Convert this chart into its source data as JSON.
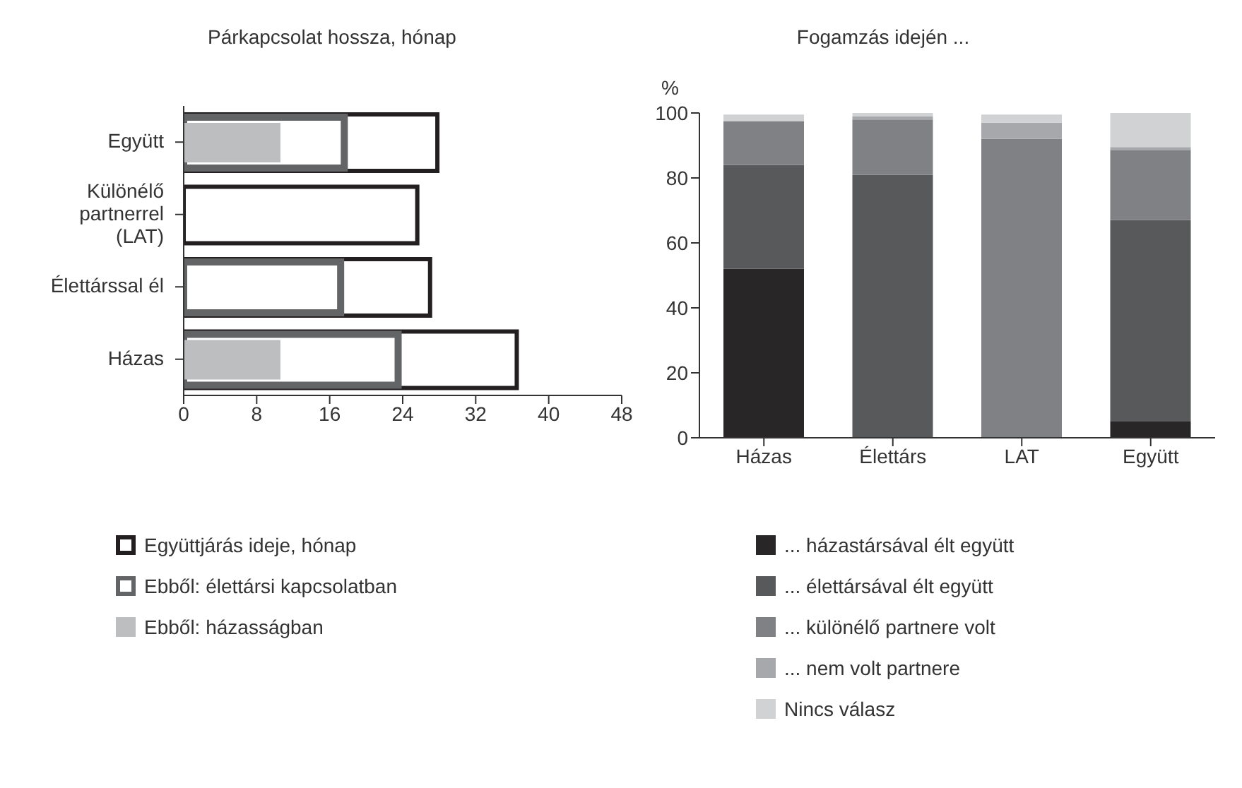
{
  "chart_data": [
    {
      "type": "bar",
      "orientation": "horizontal",
      "title": "Párkapcsolat hossza, hónap",
      "categories": [
        "Együtt",
        "Különélő partnerrel (LAT)",
        "Élettárssal él",
        "Házas"
      ],
      "series": [
        {
          "name": "Együttjárás ideje, hónap",
          "color": "#231f20",
          "values": [
            27.8,
            25.6,
            27,
            36.5
          ]
        },
        {
          "name": "Ebből: élettársi kapcsolatban",
          "color": "#636466",
          "values": [
            17.6,
            null,
            17.2,
            23.5
          ]
        },
        {
          "name": "Ebből: házasságban",
          "color": "#bcbec0",
          "values": [
            10.6,
            null,
            null,
            10.6
          ]
        }
      ],
      "xlim": [
        0,
        48
      ],
      "xticks": [
        0,
        8,
        16,
        24,
        32,
        40,
        48
      ],
      "legend": "bottom"
    },
    {
      "type": "bar",
      "stacked": true,
      "title": "Fogamzás idején ...",
      "ylabel": "%",
      "categories": [
        "Házas",
        "Élettárs",
        "LAT",
        "Együtt"
      ],
      "series": [
        {
          "name": "... házastársával élt együtt",
          "color": "#282627",
          "values": [
            52,
            0,
            0,
            5
          ]
        },
        {
          "name": "... élettársával élt együtt",
          "color": "#58595b",
          "values": [
            32,
            81,
            0,
            62
          ]
        },
        {
          "name": "... különélő partnere volt",
          "color": "#808184",
          "values": [
            13.5,
            17,
            92,
            21.5
          ]
        },
        {
          "name": "... nem volt partnere",
          "color": "#a7a8ab",
          "values": [
            0,
            1,
            5,
            1
          ]
        },
        {
          "name": "Nincs válasz",
          "color": "#d1d2d4",
          "values": [
            2,
            1,
            2.5,
            10.5
          ]
        }
      ],
      "ylim": [
        0,
        100
      ],
      "yticks": [
        0,
        20,
        40,
        60,
        80,
        100
      ],
      "legend": "bottom"
    }
  ]
}
